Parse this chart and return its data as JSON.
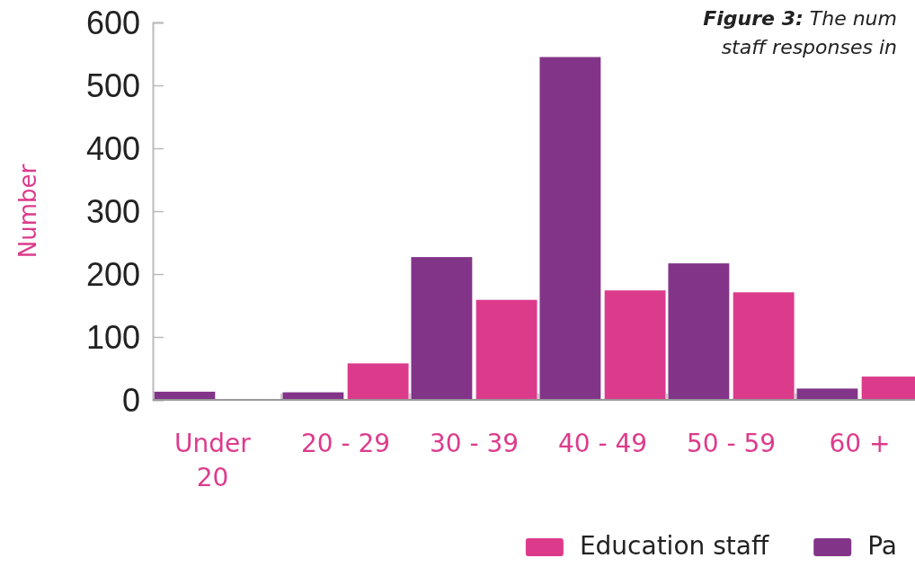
{
  "chart_data": {
    "type": "bar",
    "title": "Figure 3: The num",
    "subtitle": "staff responses in",
    "ylabel": "Number",
    "categories": [
      "Under 20",
      "20 - 29",
      "30 - 39",
      "40 - 49",
      "50 - 59",
      "60 +"
    ],
    "series": [
      {
        "name": "Pa",
        "color": "#823588",
        "values": [
          13,
          12,
          227,
          545,
          217,
          18
        ]
      },
      {
        "name": "Education staff",
        "color": "#dc3b8c",
        "values": [
          1,
          58,
          159,
          174,
          171,
          37
        ]
      }
    ],
    "ylim": [
      0,
      600
    ],
    "yticks": [
      0,
      100,
      200,
      300,
      400,
      500,
      600
    ],
    "grid": false,
    "legend": "bottom right"
  }
}
